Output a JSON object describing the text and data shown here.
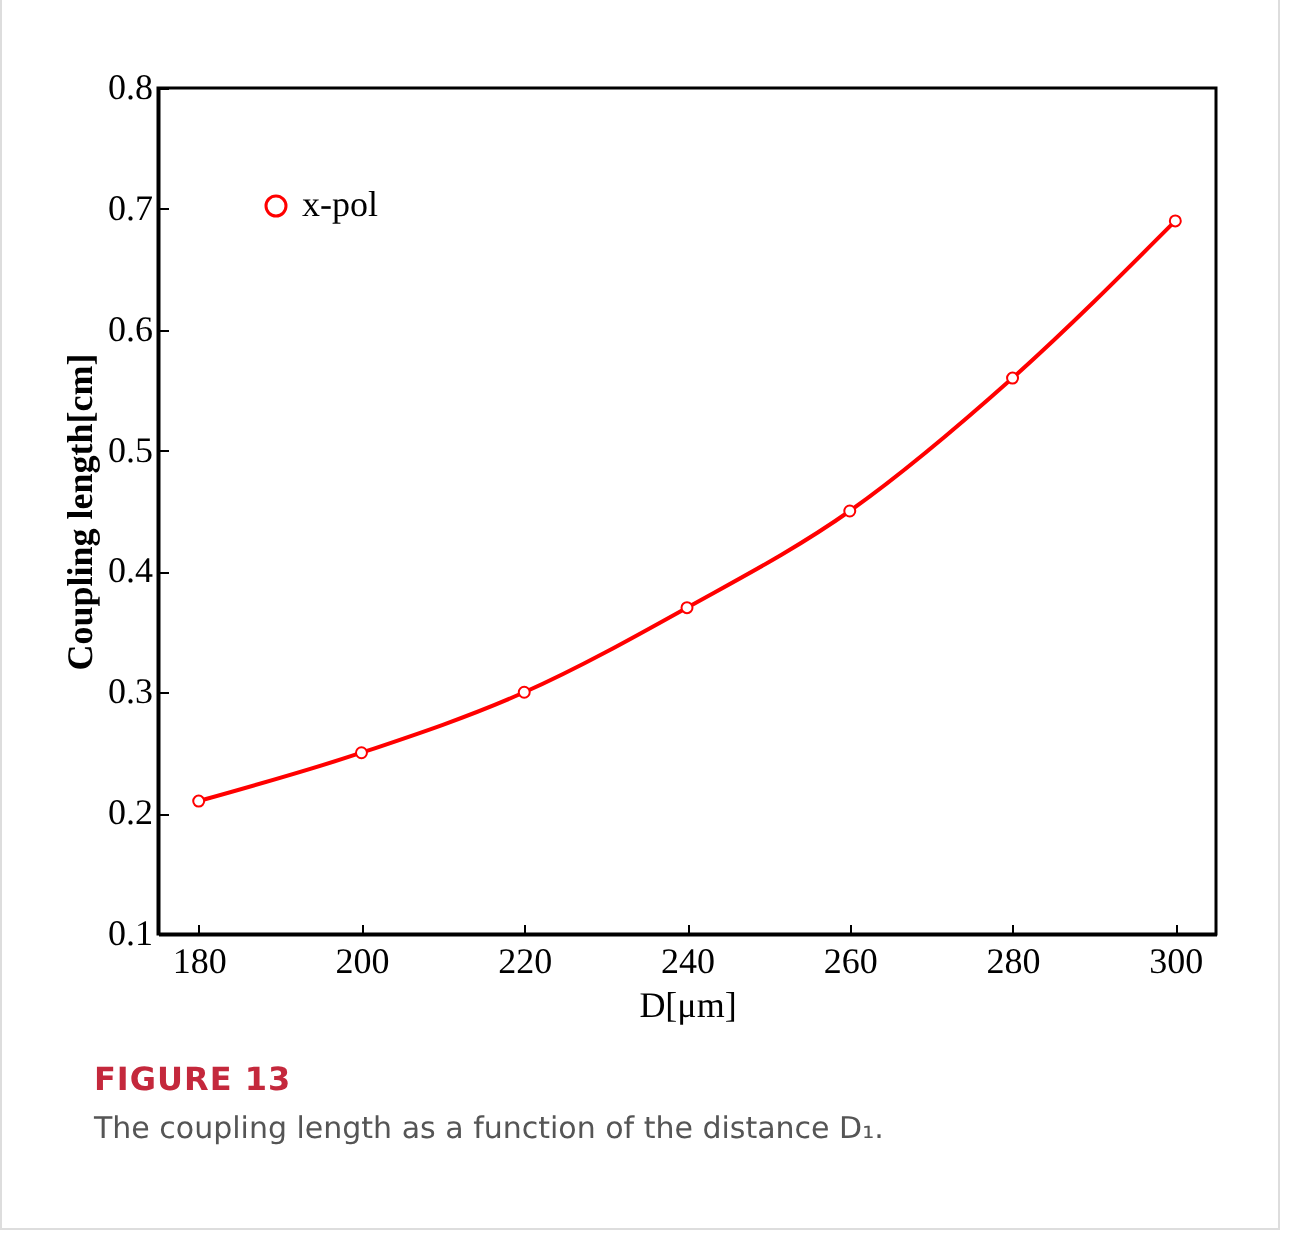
{
  "chart_data": {
    "type": "line",
    "xlabel": "D[μm]",
    "ylabel": "Coupling length[cm]",
    "x": [
      180,
      200,
      220,
      240,
      260,
      280,
      300
    ],
    "series": [
      {
        "name": "x-pol",
        "color": "#ff0000",
        "values": [
          0.21,
          0.25,
          0.3,
          0.37,
          0.45,
          0.56,
          0.69
        ]
      }
    ],
    "xlim": [
      175,
      305
    ],
    "xticks": [
      180,
      200,
      220,
      240,
      260,
      280,
      300
    ],
    "ylim": [
      0.1,
      0.8
    ],
    "yticks": [
      0.1,
      0.2,
      0.3,
      0.4,
      0.5,
      0.6,
      0.7,
      0.8
    ],
    "grid": false,
    "legend": "top left",
    "marker": "circle",
    "line_style": "solid",
    "annotations": [
      "FIGURE 13",
      "The coupling length as a function of the distance D₁."
    ]
  }
}
